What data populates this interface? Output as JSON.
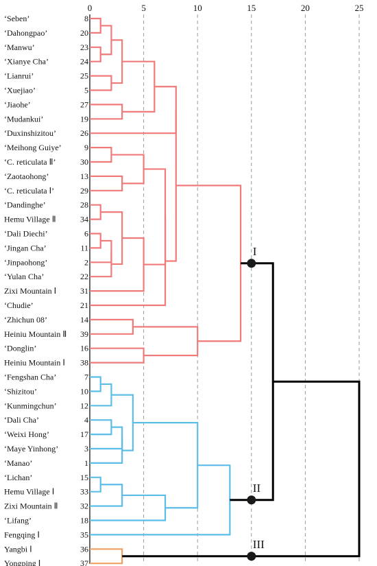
{
  "chart_data": {
    "type": "dendrogram",
    "x_ticks": [
      "0",
      "5",
      "10",
      "15",
      "20",
      "25"
    ],
    "xlim": [
      0,
      25
    ],
    "grid": "dashed vertical lines at ticks 5, 10, 15, 20, 25",
    "colors": {
      "cluster_I": "#f07a7a",
      "cluster_II": "#5bbde8",
      "cluster_III": "#f0a060",
      "root": "#000000"
    },
    "leaves": [
      {
        "name": "‘Seben’",
        "id": "8"
      },
      {
        "name": "‘Dahongpao’",
        "id": "20"
      },
      {
        "name": "‘Manwu’",
        "id": "23"
      },
      {
        "name": "‘Xianye Cha’",
        "id": "24"
      },
      {
        "name": "‘Lianrui’",
        "id": "25"
      },
      {
        "name": "‘Xuejiao’",
        "id": "5"
      },
      {
        "name": "‘Jiaohe’",
        "id": "27"
      },
      {
        "name": "‘Mudankui’",
        "id": "19"
      },
      {
        "name": "‘Duxinshizitou’",
        "id": "26"
      },
      {
        "name": "‘Meihong Guiye’",
        "id": "9"
      },
      {
        "name": "‘C. reticulata Ⅱ’",
        "id": "30"
      },
      {
        "name": "‘Zaotaohong’",
        "id": "13"
      },
      {
        "name": "‘C. reticulata Ⅰ’",
        "id": "29"
      },
      {
        "name": "‘Dandinghe’",
        "id": "28"
      },
      {
        "name": "Hemu Village Ⅱ",
        "id": "34"
      },
      {
        "name": "‘Dali Diechi’",
        "id": "6"
      },
      {
        "name": "‘Jingan Cha’",
        "id": "11"
      },
      {
        "name": "‘Jinpaohong’",
        "id": "2"
      },
      {
        "name": "‘Yulan Cha’",
        "id": "22"
      },
      {
        "name": "Zixi Mountain Ⅰ",
        "id": "31"
      },
      {
        "name": "‘Chudie’",
        "id": "21"
      },
      {
        "name": "‘Zhichun 08’",
        "id": "14"
      },
      {
        "name": "Heiniu Mountain Ⅱ",
        "id": "39"
      },
      {
        "name": "‘Donglin’",
        "id": "16"
      },
      {
        "name": "Heiniu Mountain Ⅰ",
        "id": "38"
      },
      {
        "name": "‘Fengshan Cha’",
        "id": "7"
      },
      {
        "name": "‘Shizitou’",
        "id": "10"
      },
      {
        "name": "‘Kunmingchun’",
        "id": "12"
      },
      {
        "name": "‘Dali Cha’",
        "id": "4"
      },
      {
        "name": "‘Weixi Hong’",
        "id": "17"
      },
      {
        "name": "‘Maye Yinhong’",
        "id": "3"
      },
      {
        "name": "‘Manao’",
        "id": "1"
      },
      {
        "name": "‘Lichan’",
        "id": "15"
      },
      {
        "name": "Hemu Village Ⅰ",
        "id": "33"
      },
      {
        "name": "Zixi Mountain Ⅱ",
        "id": "32"
      },
      {
        "name": "‘Lifang’",
        "id": "18"
      },
      {
        "name": "Fengqing Ⅰ",
        "id": "35"
      },
      {
        "name": "Yangbi Ⅰ",
        "id": "36"
      },
      {
        "name": "Yongping Ⅰ",
        "id": "37"
      }
    ],
    "merges": [
      {
        "id": "a1",
        "c": [
          0,
          1
        ],
        "h": 1,
        "col": "red"
      },
      {
        "id": "a2",
        "c": [
          2,
          3
        ],
        "h": 1,
        "col": "red"
      },
      {
        "id": "a3",
        "c": [
          "a1",
          "a2"
        ],
        "h": 2,
        "col": "red"
      },
      {
        "id": "a4",
        "c": [
          4,
          5
        ],
        "h": 2,
        "col": "red"
      },
      {
        "id": "a5",
        "c": [
          "a3",
          "a4"
        ],
        "h": 3,
        "col": "red"
      },
      {
        "id": "a6",
        "c": [
          6,
          7
        ],
        "h": 3,
        "col": "red"
      },
      {
        "id": "a7",
        "c": [
          "a5",
          "a6"
        ],
        "h": 6,
        "col": "red"
      },
      {
        "id": "a8",
        "c": [
          "a7",
          8
        ],
        "h": 8,
        "col": "red"
      },
      {
        "id": "b1",
        "c": [
          9,
          10
        ],
        "h": 2,
        "col": "red"
      },
      {
        "id": "b2",
        "c": [
          11,
          12
        ],
        "h": 3,
        "col": "red"
      },
      {
        "id": "b3",
        "c": [
          "b1",
          "b2"
        ],
        "h": 5,
        "col": "red"
      },
      {
        "id": "b4",
        "c": [
          13,
          14
        ],
        "h": 1,
        "col": "red"
      },
      {
        "id": "b5",
        "c": [
          15,
          16
        ],
        "h": 1,
        "col": "red"
      },
      {
        "id": "b6",
        "c": [
          "b5",
          17
        ],
        "h": 2,
        "col": "red"
      },
      {
        "id": "b7",
        "c": [
          "b6",
          18
        ],
        "h": 2,
        "col": "red"
      },
      {
        "id": "b8",
        "c": [
          "b4",
          "b7"
        ],
        "h": 3,
        "col": "red"
      },
      {
        "id": "b9",
        "c": [
          "b8",
          19
        ],
        "h": 5,
        "col": "red"
      },
      {
        "id": "b10",
        "c": [
          "b3",
          "b9"
        ],
        "h": 7,
        "col": "red"
      },
      {
        "id": "b11",
        "c": [
          "b10",
          20
        ],
        "h": 7,
        "col": "red"
      },
      {
        "id": "c1",
        "c": [
          "a8",
          "b11"
        ],
        "h": 8,
        "col": "red"
      },
      {
        "id": "d1",
        "c": [
          21,
          22
        ],
        "h": 4,
        "col": "red"
      },
      {
        "id": "d2",
        "c": [
          23,
          24
        ],
        "h": 5,
        "col": "red"
      },
      {
        "id": "d3",
        "c": [
          "d1",
          "d2"
        ],
        "h": 10,
        "col": "red"
      },
      {
        "id": "e1",
        "c": [
          "c1",
          "d3"
        ],
        "h": 14,
        "col": "red"
      },
      {
        "id": "f1",
        "c": [
          25,
          26
        ],
        "h": 1,
        "col": "blue"
      },
      {
        "id": "f2",
        "c": [
          "f1",
          27
        ],
        "h": 2,
        "col": "blue"
      },
      {
        "id": "f3",
        "c": [
          28,
          29
        ],
        "h": 2,
        "col": "blue"
      },
      {
        "id": "f4",
        "c": [
          "f3",
          30
        ],
        "h": 3,
        "col": "blue"
      },
      {
        "id": "f5",
        "c": [
          "f4",
          31
        ],
        "h": 3,
        "col": "blue"
      },
      {
        "id": "f6",
        "c": [
          "f2",
          "f5"
        ],
        "h": 4,
        "col": "blue"
      },
      {
        "id": "g1",
        "c": [
          32,
          33
        ],
        "h": 1,
        "col": "blue"
      },
      {
        "id": "g2",
        "c": [
          "g1",
          34
        ],
        "h": 3,
        "col": "blue"
      },
      {
        "id": "g3",
        "c": [
          "g2",
          35
        ],
        "h": 7,
        "col": "blue"
      },
      {
        "id": "h1",
        "c": [
          "f6",
          "g3"
        ],
        "h": 10,
        "col": "blue"
      },
      {
        "id": "h2",
        "c": [
          "h1",
          36
        ],
        "h": 13,
        "col": "blue"
      },
      {
        "id": "k1",
        "c": [
          37,
          38
        ],
        "h": 3,
        "col": "orange"
      },
      {
        "id": "r1",
        "c": [
          "e1",
          "h2"
        ],
        "h": 17,
        "col": "black"
      },
      {
        "id": "r2",
        "c": [
          "r1",
          "k1"
        ],
        "h": 25,
        "col": "black"
      }
    ],
    "cluster_labels": [
      {
        "label": "I",
        "node": "e1",
        "h": 15
      },
      {
        "label": "II",
        "node": "h2",
        "h": 15
      },
      {
        "label": "III",
        "node": "k1",
        "h": 15
      }
    ]
  }
}
